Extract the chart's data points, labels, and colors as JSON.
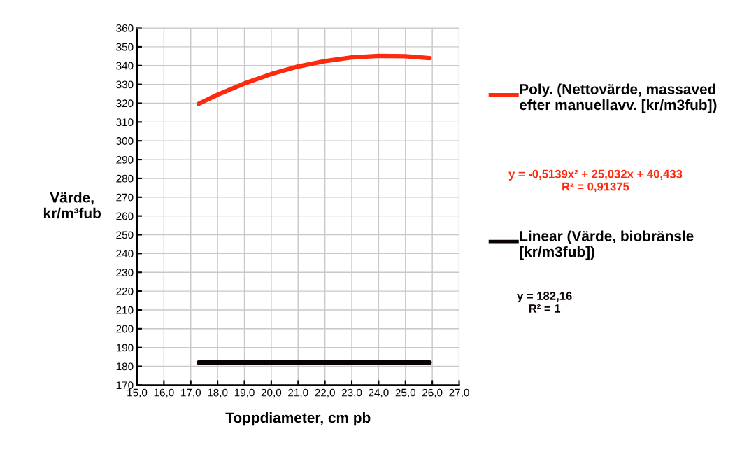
{
  "chart_data": {
    "type": "line",
    "xlabel": "Toppdiameter, cm pb",
    "ylabel": "Värde,\nkr/m³fub",
    "series": [
      {
        "name": "Poly. (Nettovärde, massaved efter manuellavv. [kr/m3fub])",
        "color": "#ff2a0e",
        "x": [
          17.3,
          18,
          19,
          20,
          21,
          22,
          23,
          24,
          25,
          25.9
        ],
        "values": [
          319.7,
          324.5,
          330.5,
          335.5,
          339.5,
          342.4,
          344.3,
          345.2,
          345.0,
          344.0
        ]
      },
      {
        "name": "Linear (Värde, biobränsle [kr/m3fub])",
        "color": "#0a0202",
        "x": [
          17.3,
          25.9
        ],
        "values": [
          182,
          182
        ]
      }
    ],
    "annotations": [
      "y = -0,5139x² + 25,032x + 40,433\nR² = 0,91375",
      "y = 182,16\nR² = 1"
    ],
    "xlim": [
      15,
      27
    ],
    "xticks": [
      {
        "value": 15,
        "label": "15,0"
      },
      {
        "value": 16,
        "label": "16,0"
      },
      {
        "value": 17,
        "label": "17,0"
      },
      {
        "value": 18,
        "label": "18,0"
      },
      {
        "value": 19,
        "label": "19,0"
      },
      {
        "value": 20,
        "label": "20,0"
      },
      {
        "value": 21,
        "label": "21,0"
      },
      {
        "value": 22,
        "label": "22,0"
      },
      {
        "value": 23,
        "label": "23,0"
      },
      {
        "value": 24,
        "label": "24,0"
      },
      {
        "value": 25,
        "label": "25,0"
      },
      {
        "value": 26,
        "label": "26,0"
      },
      {
        "value": 27,
        "label": "27,0"
      }
    ],
    "ylim": [
      170,
      360
    ],
    "yticks": [
      170,
      180,
      190,
      200,
      210,
      220,
      230,
      240,
      250,
      260,
      270,
      280,
      290,
      300,
      310,
      320,
      330,
      340,
      350,
      360
    ],
    "grid": true,
    "legend": "right",
    "marker": "none",
    "line_style": "solid"
  }
}
